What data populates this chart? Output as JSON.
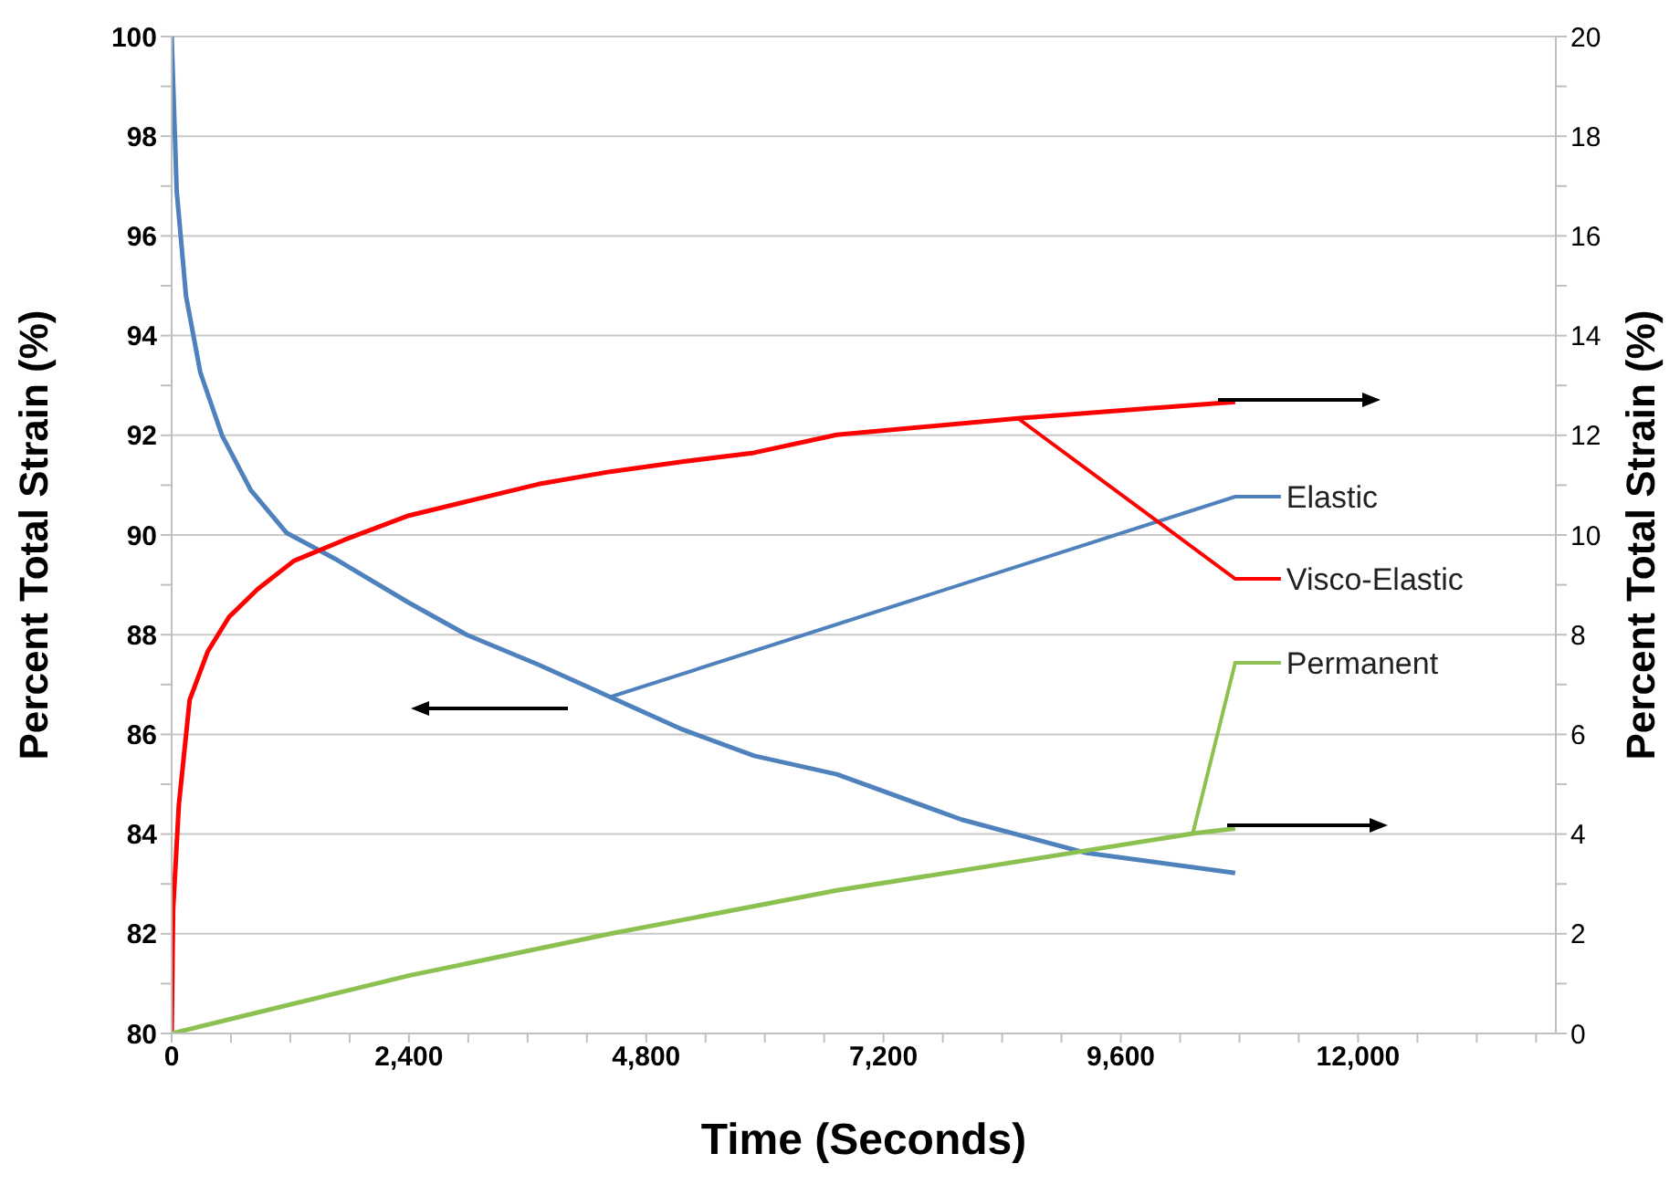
{
  "chart_data": {
    "type": "line",
    "xlabel": "Time (Seconds)",
    "ylabel": "Percent Total Strain (%)",
    "y2label": "Percent Total Strain (%)",
    "xlim": [
      0,
      14000
    ],
    "xticks": [
      0,
      {
        "value": 600,
        "label": null
      },
      {
        "value": 1200,
        "label": null
      },
      {
        "value": 1800,
        "label": null
      },
      {
        "value": 2400,
        "label": "2,400"
      },
      {
        "value": 3000,
        "label": null
      },
      {
        "value": 3600,
        "label": null
      },
      {
        "value": 4200,
        "label": null
      },
      {
        "value": 4800,
        "label": "4,800"
      },
      {
        "value": 5400,
        "label": null
      },
      {
        "value": 6000,
        "label": null
      },
      {
        "value": 6600,
        "label": null
      },
      {
        "value": 7200,
        "label": "7,200"
      },
      {
        "value": 7800,
        "label": null
      },
      {
        "value": 8400,
        "label": null
      },
      {
        "value": 9000,
        "label": null
      },
      {
        "value": 9600,
        "label": "9,600"
      },
      {
        "value": 10200,
        "label": null
      },
      {
        "value": 10800,
        "label": null
      },
      {
        "value": 11400,
        "label": null
      },
      {
        "value": 12000,
        "label": "12,000"
      },
      {
        "value": 12600,
        "label": null
      },
      {
        "value": 13200,
        "label": null
      },
      {
        "value": 13800,
        "label": null
      }
    ],
    "ylim": [
      80,
      100
    ],
    "yticks": [
      80,
      {
        "value": 81,
        "label": null
      },
      82,
      {
        "value": 83,
        "label": null
      },
      84,
      {
        "value": 85,
        "label": null
      },
      86,
      {
        "value": 87,
        "label": null
      },
      88,
      {
        "value": 89,
        "label": null
      },
      90,
      {
        "value": 91,
        "label": null
      },
      92,
      {
        "value": 93,
        "label": null
      },
      94,
      {
        "value": 95,
        "label": null
      },
      96,
      {
        "value": 97,
        "label": null
      },
      98,
      {
        "value": 99,
        "label": null
      },
      100
    ],
    "y2lim": [
      0,
      20
    ],
    "y2ticks": [
      0,
      {
        "value": 1,
        "label": null
      },
      2,
      {
        "value": 3,
        "label": null
      },
      4,
      {
        "value": 5,
        "label": null
      },
      6,
      {
        "value": 7,
        "label": null
      },
      8,
      {
        "value": 9,
        "label": null
      },
      10,
      {
        "value": 11,
        "label": null
      },
      12,
      {
        "value": 13,
        "label": null
      },
      14,
      {
        "value": 15,
        "label": null
      },
      16,
      {
        "value": 17,
        "label": null
      },
      18,
      {
        "value": 19,
        "label": null
      },
      20
    ],
    "grid": "y",
    "marker": "none",
    "line_style": "solid",
    "series": [
      {
        "name": "Elastic",
        "color": "#4f81bd",
        "x": [
          0,
          51,
          145,
          290,
          509,
          800,
          1164,
          1673,
          2400,
          2982,
          3709,
          4436,
          5164,
          5891,
          6728,
          7990,
          9253,
          10757
        ],
        "values": [
          100,
          96.9,
          94.8,
          93.26,
          92.0,
          90.9,
          90.04,
          89.5,
          88.64,
          88.0,
          87.4,
          86.75,
          86.1,
          85.57,
          85.2,
          84.29,
          83.62,
          83.22
        ]
      },
      {
        "name": "Visco-Elastic",
        "color": "#ff0000",
        "axis": "y2",
        "x": [
          0,
          15,
          73,
          182,
          364,
          582,
          873,
          1236,
          1745,
          2400,
          2982,
          3709,
          4436,
          5164,
          5891,
          6728,
          8560,
          10757
        ],
        "values": [
          0,
          2.49,
          4.59,
          6.69,
          7.66,
          8.36,
          8.92,
          9.48,
          9.9,
          10.39,
          10.67,
          11.02,
          11.27,
          11.47,
          11.65,
          12.01,
          12.34,
          12.67
        ]
      },
      {
        "name": "Permanent",
        "color": "#8cc152",
        "axis": "y2",
        "x": [
          0,
          2400,
          4436,
          6728,
          10328,
          10757
        ],
        "values": [
          0,
          1.16,
          2.0,
          2.87,
          4.01,
          4.11
        ]
      }
    ]
  }
}
